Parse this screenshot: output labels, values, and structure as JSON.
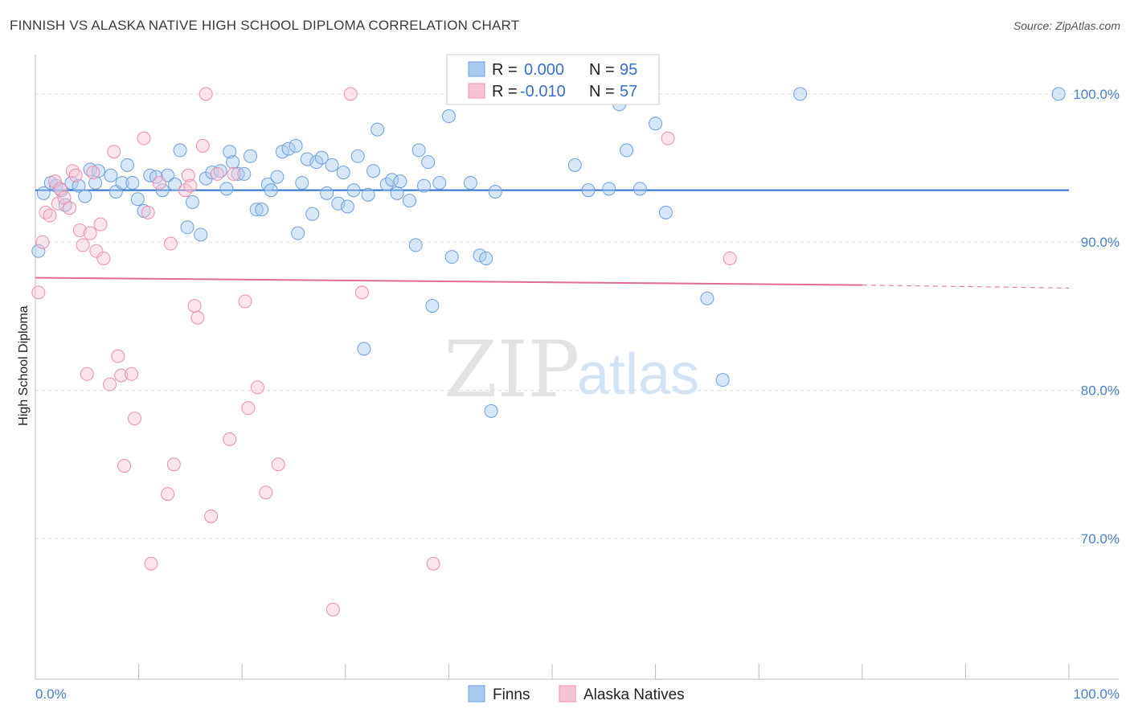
{
  "title": "FINNISH VS ALASKA NATIVE HIGH SCHOOL DIPLOMA CORRELATION CHART",
  "source": "Source: ZipAtlas.com",
  "colors": {
    "finns_fill": "#a9c9ef",
    "finns_stroke": "#6f9fdc",
    "finns_line": "#2f6fd0",
    "alaska_fill": "#f6c3d3",
    "alaska_stroke": "#e990ad",
    "alaska_line": "#e06c93",
    "axis_label": "#4a7fc9",
    "grid": "#dddddd"
  },
  "legend": {
    "r_label": "R =",
    "n_label": "N =",
    "finns_r": "0.000",
    "finns_n": "95",
    "alaska_r": "-0.010",
    "alaska_n": "57"
  },
  "watermark": {
    "zip": "ZIP",
    "atlas": "atlas"
  },
  "chart_data": {
    "type": "scatter",
    "title": "FINNISH VS ALASKA NATIVE HIGH SCHOOL DIPLOMA CORRELATION CHART",
    "xlabel": "",
    "ylabel": "High School Diploma",
    "xlim": [
      0,
      100
    ],
    "ylim": [
      60.5,
      102
    ],
    "x_tick_labels": [
      "0.0%",
      "100.0%"
    ],
    "y_ticks": [
      100,
      90,
      80,
      70
    ],
    "y_tick_labels": [
      "100.0%",
      "90.0%",
      "80.0%",
      "70.0%"
    ],
    "grid": true,
    "legend_position": "top-center",
    "series": [
      {
        "name": "Finns",
        "trend": {
          "x": [
            0,
            100
          ],
          "y": [
            93.5,
            93.5
          ]
        },
        "points": [
          [
            0.8,
            93.3
          ],
          [
            1.5,
            94.0
          ],
          [
            2.0,
            93.8
          ],
          [
            2.5,
            93.5
          ],
          [
            2.9,
            92.5
          ],
          [
            3.5,
            94.0
          ],
          [
            4.2,
            93.8
          ],
          [
            4.8,
            93.1
          ],
          [
            5.3,
            94.9
          ],
          [
            6.1,
            94.8
          ],
          [
            5.8,
            94.0
          ],
          [
            7.3,
            94.5
          ],
          [
            7.8,
            93.4
          ],
          [
            8.4,
            94.0
          ],
          [
            8.9,
            95.2
          ],
          [
            9.4,
            94.0
          ],
          [
            9.9,
            92.9
          ],
          [
            10.5,
            92.1
          ],
          [
            11.1,
            94.5
          ],
          [
            11.7,
            94.4
          ],
          [
            12.3,
            93.5
          ],
          [
            12.8,
            94.5
          ],
          [
            13.5,
            93.9
          ],
          [
            14.0,
            96.2
          ],
          [
            14.7,
            91.0
          ],
          [
            15.2,
            92.7
          ],
          [
            16.0,
            90.5
          ],
          [
            16.5,
            94.3
          ],
          [
            17.1,
            94.7
          ],
          [
            17.9,
            94.8
          ],
          [
            18.5,
            93.6
          ],
          [
            18.8,
            96.1
          ],
          [
            19.1,
            95.4
          ],
          [
            19.6,
            94.6
          ],
          [
            20.2,
            94.6
          ],
          [
            20.8,
            95.8
          ],
          [
            21.4,
            92.2
          ],
          [
            21.9,
            92.2
          ],
          [
            22.5,
            93.9
          ],
          [
            22.8,
            93.5
          ],
          [
            23.4,
            94.4
          ],
          [
            23.9,
            96.1
          ],
          [
            24.5,
            96.3
          ],
          [
            25.2,
            96.5
          ],
          [
            25.4,
            90.6
          ],
          [
            25.8,
            94.0
          ],
          [
            26.3,
            95.6
          ],
          [
            26.8,
            91.9
          ],
          [
            27.2,
            95.4
          ],
          [
            27.7,
            95.7
          ],
          [
            28.2,
            93.3
          ],
          [
            28.7,
            95.2
          ],
          [
            29.3,
            92.6
          ],
          [
            29.8,
            94.7
          ],
          [
            30.2,
            92.4
          ],
          [
            30.8,
            93.5
          ],
          [
            31.2,
            95.8
          ],
          [
            31.8,
            82.8
          ],
          [
            32.2,
            93.2
          ],
          [
            32.7,
            94.8
          ],
          [
            33.1,
            97.6
          ],
          [
            34.0,
            93.9
          ],
          [
            34.5,
            94.2
          ],
          [
            35.0,
            93.3
          ],
          [
            35.3,
            94.1
          ],
          [
            36.2,
            92.8
          ],
          [
            36.8,
            89.8
          ],
          [
            37.1,
            96.2
          ],
          [
            37.6,
            93.8
          ],
          [
            38.0,
            95.4
          ],
          [
            38.4,
            85.7
          ],
          [
            39.1,
            94.0
          ],
          [
            40.0,
            98.5
          ],
          [
            40.3,
            89.0
          ],
          [
            42.1,
            94.0
          ],
          [
            43.0,
            89.1
          ],
          [
            43.6,
            88.9
          ],
          [
            44.1,
            78.6
          ],
          [
            44.5,
            93.4
          ],
          [
            45.2,
            100.0
          ],
          [
            50.1,
            99.8
          ],
          [
            52.2,
            95.2
          ],
          [
            53.5,
            93.5
          ],
          [
            55.5,
            93.6
          ],
          [
            56.5,
            99.3
          ],
          [
            57.2,
            96.2
          ],
          [
            58.5,
            93.6
          ],
          [
            59.0,
            100.0
          ],
          [
            60.0,
            98.0
          ],
          [
            61.0,
            92.0
          ],
          [
            65.0,
            86.2
          ],
          [
            66.5,
            80.7
          ],
          [
            74.0,
            100.0
          ],
          [
            99.0,
            100.0
          ],
          [
            0.3,
            89.4
          ]
        ]
      },
      {
        "name": "Alaska Natives",
        "trend": {
          "x": [
            0,
            80
          ],
          "y": [
            87.6,
            87.1
          ]
        },
        "trend_dashed": {
          "x": [
            80,
            100
          ],
          "y": [
            87.1,
            86.9
          ]
        },
        "points": [
          [
            0.3,
            86.6
          ],
          [
            0.7,
            90.0
          ],
          [
            1.0,
            92.0
          ],
          [
            1.4,
            91.8
          ],
          [
            1.9,
            94.1
          ],
          [
            2.2,
            92.6
          ],
          [
            2.4,
            93.6
          ],
          [
            2.8,
            93.0
          ],
          [
            3.3,
            92.3
          ],
          [
            3.6,
            94.8
          ],
          [
            3.9,
            94.5
          ],
          [
            4.3,
            90.8
          ],
          [
            4.6,
            89.8
          ],
          [
            5.0,
            81.1
          ],
          [
            5.3,
            90.6
          ],
          [
            5.6,
            94.7
          ],
          [
            5.9,
            89.4
          ],
          [
            6.3,
            91.2
          ],
          [
            6.6,
            88.9
          ],
          [
            7.2,
            80.4
          ],
          [
            7.6,
            96.1
          ],
          [
            8.0,
            82.3
          ],
          [
            8.3,
            81.0
          ],
          [
            8.6,
            74.9
          ],
          [
            9.3,
            81.1
          ],
          [
            9.6,
            78.1
          ],
          [
            10.5,
            97.0
          ],
          [
            10.9,
            92.0
          ],
          [
            11.2,
            68.3
          ],
          [
            12.0,
            94.0
          ],
          [
            12.8,
            73.0
          ],
          [
            13.1,
            89.9
          ],
          [
            13.4,
            75.0
          ],
          [
            14.5,
            93.5
          ],
          [
            14.8,
            94.5
          ],
          [
            15.4,
            85.7
          ],
          [
            15.7,
            84.9
          ],
          [
            15.0,
            93.8
          ],
          [
            16.2,
            96.5
          ],
          [
            16.5,
            100.0
          ],
          [
            17.0,
            71.5
          ],
          [
            17.6,
            94.6
          ],
          [
            18.8,
            76.7
          ],
          [
            19.2,
            94.6
          ],
          [
            20.3,
            86.0
          ],
          [
            20.6,
            78.8
          ],
          [
            21.5,
            80.2
          ],
          [
            22.3,
            73.1
          ],
          [
            23.5,
            75.0
          ],
          [
            28.8,
            65.2
          ],
          [
            30.5,
            100.0
          ],
          [
            31.6,
            86.6
          ],
          [
            38.5,
            68.3
          ],
          [
            41.0,
            100.0
          ],
          [
            44.8,
            100.0
          ],
          [
            67.2,
            88.9
          ],
          [
            61.2,
            97.0
          ]
        ]
      }
    ]
  },
  "bottom_legend": {
    "finns": "Finns",
    "alaska": "Alaska Natives"
  }
}
